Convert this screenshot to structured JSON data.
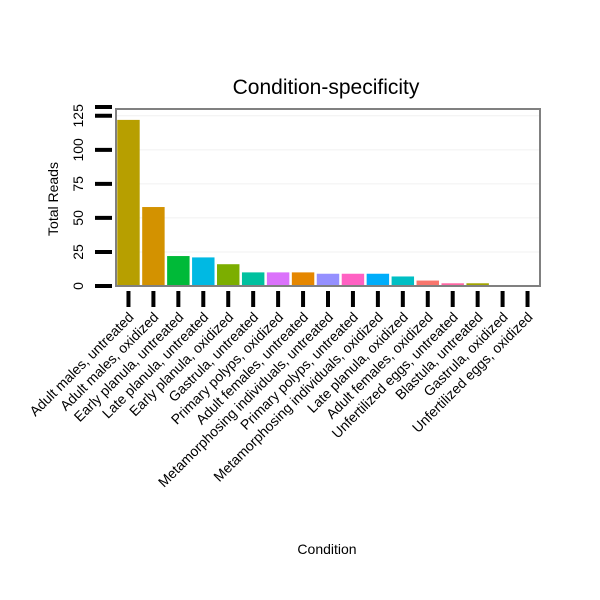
{
  "chart_data": {
    "type": "bar",
    "title": "Condition-specificity",
    "xlabel": "Condition",
    "ylabel": "Total Reads",
    "ylim": [
      0,
      130
    ],
    "yticks": [
      0,
      25,
      50,
      75,
      100,
      125
    ],
    "grid": true,
    "legend": "none",
    "categories": [
      "Adult males, untreated",
      "Adult males, oxidized",
      "Early planula, untreated",
      "Late planula, untreated",
      "Early planula, oxidized",
      "Gastrula, untreated",
      "Primary polyps, oxidized",
      "Adult females, untreated",
      "Metamorphosing individuals, untreated",
      "Primary polyps, untreated",
      "Metamorphosing individuals, oxidized",
      "Late planula, oxidized",
      "Adult females, oxidized",
      "Unfertilized eggs, untreated",
      "Blastula, untreated",
      "Gastrula, oxidized",
      "Unfertilized eggs, oxidized"
    ],
    "values": [
      122,
      58,
      22,
      21,
      16,
      10,
      10,
      10,
      9,
      9,
      9,
      7,
      4,
      2,
      2,
      0,
      0
    ],
    "colors": [
      "#B79F00",
      "#D39200",
      "#00BA38",
      "#00B9E3",
      "#7CAE00",
      "#00C19F",
      "#DB72FB",
      "#E58700",
      "#9590FF",
      "#FF61C3",
      "#00ADFA",
      "#00BFC4",
      "#F8766D",
      "#FF67A4",
      "#A3A500",
      "#619CFF",
      "#F564E3"
    ]
  }
}
